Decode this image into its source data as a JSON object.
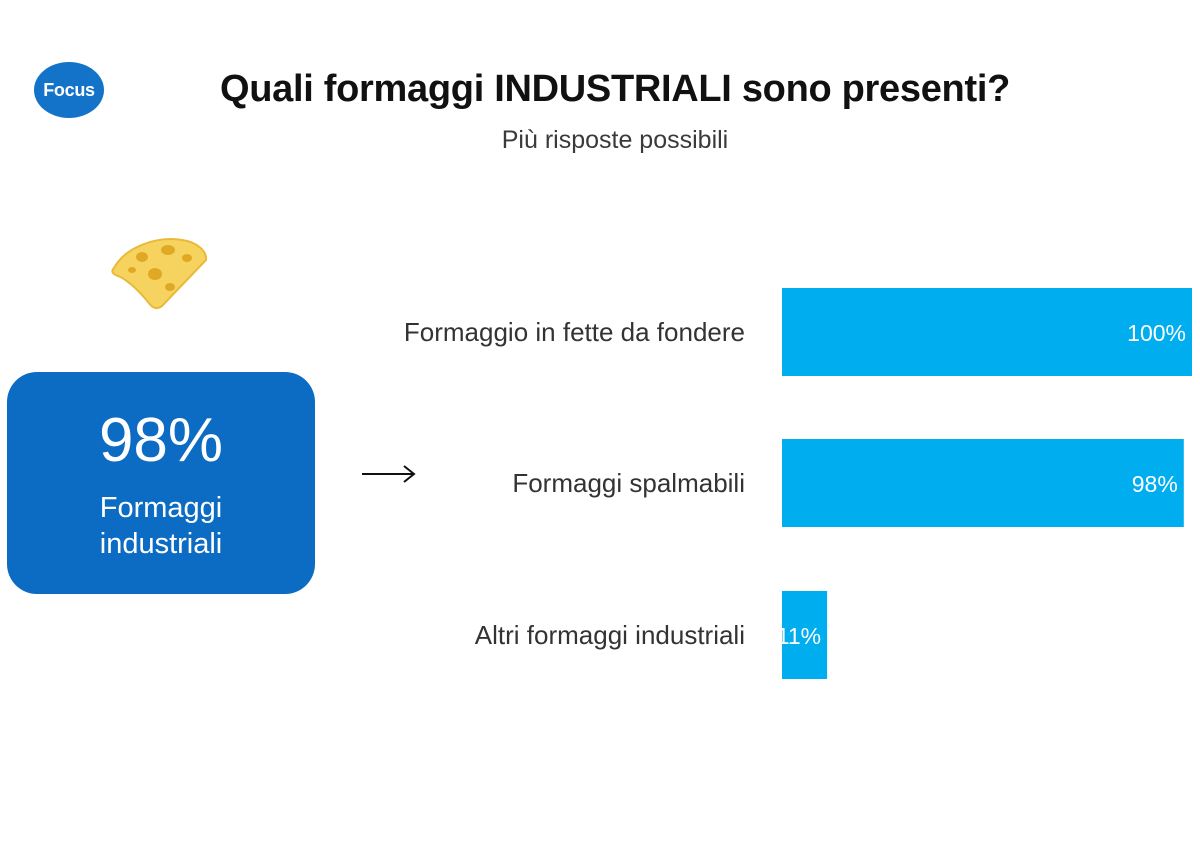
{
  "brand": {
    "logo_text": "Focus",
    "color": "#1273c9"
  },
  "header": {
    "title": "Quali formaggi INDUSTRIALI sono presenti?",
    "subtitle": "Più risposte possibili"
  },
  "icons": {
    "cheese": "cheese-icon",
    "arrow": "right-arrow-icon"
  },
  "summary": {
    "value": "98%",
    "label": "Formaggi industriali",
    "color": "#0c6bc3"
  },
  "chart_data": {
    "type": "bar",
    "orientation": "horizontal",
    "title": "Quali formaggi INDUSTRIALI sono presenti?",
    "subtitle": "Più risposte possibili",
    "categories": [
      "Formaggio in fette da fondere",
      "Formaggi spalmabili",
      "Altri formaggi industriali"
    ],
    "values": [
      100,
      98,
      11
    ],
    "data_labels": [
      "100%",
      "98%",
      "11%"
    ],
    "xlim": [
      0,
      100
    ],
    "unit": "%",
    "grid": false,
    "color": "#00aeef"
  }
}
